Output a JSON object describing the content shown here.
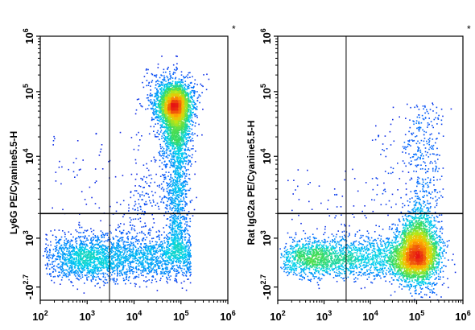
{
  "chart_data": [
    {
      "type": "scatter",
      "subtype": "flow-cytometry-density-dot-plot",
      "title": "",
      "xlabel": "",
      "ylabel": "Ly6G PE/Cyanine5.5-H",
      "corner_mark": "*",
      "x_scale": "biexponential",
      "y_scale": "biexponential",
      "xlim": [
        100,
        1000000
      ],
      "ylim": [
        -500,
        1000000
      ],
      "x_ticks": [
        {
          "value": 100,
          "label": "10^2"
        },
        {
          "value": 1000,
          "label": "10^3"
        },
        {
          "value": 10000,
          "label": "10^4"
        },
        {
          "value": 100000,
          "label": "10^5"
        },
        {
          "value": 1000000,
          "label": "10^6"
        }
      ],
      "y_ticks": [
        {
          "value": -500,
          "label": "-10^2.7"
        },
        {
          "value": 1000,
          "label": "10^3"
        },
        {
          "value": 10000,
          "label": "10^4"
        },
        {
          "value": 100000,
          "label": "10^5"
        },
        {
          "value": 1000000,
          "label": "10^6"
        }
      ],
      "quadrant_gate": {
        "x": 3000,
        "y": 2000
      },
      "populations": [
        {
          "center": [
            70000,
            70000
          ],
          "spread": "dense",
          "peak": "red"
        },
        {
          "center": [
            90000,
            8000
          ],
          "spread": "vertical stream",
          "peak": "green"
        },
        {
          "center": [
            20000,
            200
          ],
          "spread": "horizontal band",
          "peak": "cyan"
        }
      ],
      "grid": false,
      "legend": "none"
    },
    {
      "type": "scatter",
      "subtype": "flow-cytometry-density-dot-plot",
      "title": "",
      "xlabel": "",
      "ylabel": "Rat IgG2a PE/Cyanine5.5-H",
      "corner_mark": "*",
      "x_scale": "biexponential",
      "y_scale": "biexponential",
      "xlim": [
        100,
        1000000
      ],
      "ylim": [
        -500,
        1000000
      ],
      "x_ticks": [
        {
          "value": 100,
          "label": "10^2"
        },
        {
          "value": 1000,
          "label": "10^3"
        },
        {
          "value": 10000,
          "label": "10^4"
        },
        {
          "value": 100000,
          "label": "10^5"
        },
        {
          "value": 1000000,
          "label": "10^6"
        }
      ],
      "y_ticks": [
        {
          "value": -500,
          "label": "-10^2.7"
        },
        {
          "value": 1000,
          "label": "10^3"
        },
        {
          "value": 10000,
          "label": "10^4"
        },
        {
          "value": 100000,
          "label": "10^5"
        },
        {
          "value": 1000000,
          "label": "10^6"
        }
      ],
      "quadrant_gate": {
        "x": 3000,
        "y": 2000
      },
      "populations": [
        {
          "center": [
            85000,
            0
          ],
          "spread": "dense",
          "peak": "red"
        },
        {
          "center": [
            5000,
            0
          ],
          "spread": "horizontal band",
          "peak": "cyan"
        }
      ],
      "grid": false,
      "legend": "none"
    }
  ]
}
